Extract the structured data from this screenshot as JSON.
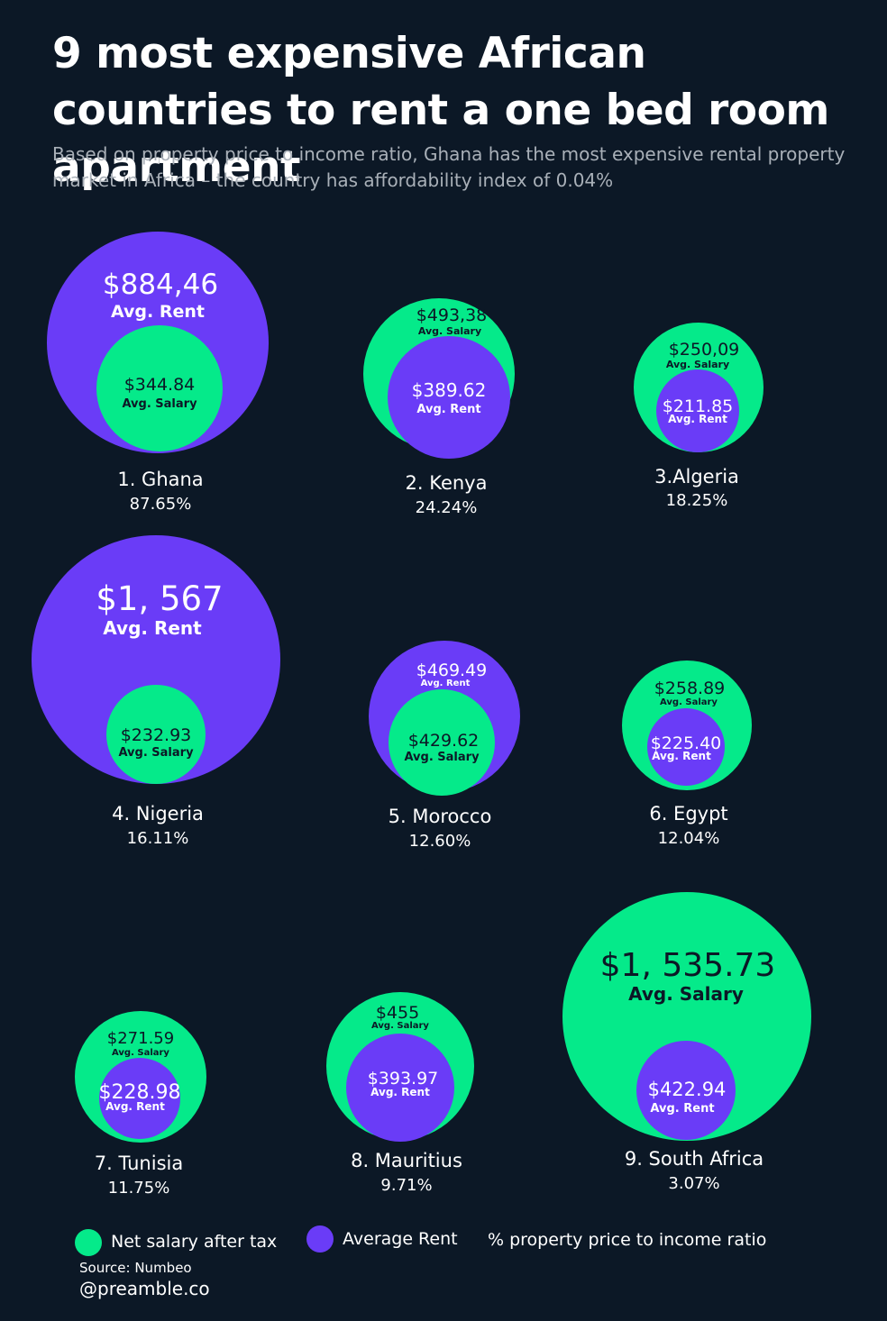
{
  "title": "9 most expensive African countries to rent a one bed room apartment",
  "subtitle": "Based on property price to income ratio, Ghana has the most expensive rental property market in Africa – the country has affordability index of 0.04%",
  "colors": {
    "salary": "#05ea8a",
    "rent": "#6a3cf7",
    "background": "#0c1826"
  },
  "chart_data": {
    "type": "nested-bubble",
    "series": [
      {
        "name": "Net salary after tax",
        "color": "#05ea8a"
      },
      {
        "name": "Average Rent",
        "color": "#6a3cf7"
      }
    ],
    "items": [
      {
        "rank_label": "1. Ghana",
        "percent": "87.65%",
        "ratio": 87.65,
        "outer": {
          "kind": "rent",
          "value": 884.46,
          "value_text": "$884,46",
          "label": "Avg. Rent"
        },
        "inner": {
          "kind": "salary",
          "value": 344.84,
          "value_text": "$344.84",
          "label": "Avg. Salary"
        }
      },
      {
        "rank_label": "2. Kenya",
        "percent": "24.24%",
        "ratio": 24.24,
        "outer": {
          "kind": "salary",
          "value": 493.38,
          "value_text": "$493,38",
          "label": "Avg. Salary"
        },
        "inner": {
          "kind": "rent",
          "value": 389.62,
          "value_text": "$389.62",
          "label": "Avg. Rent"
        }
      },
      {
        "rank_label": "3.Algeria",
        "percent": "18.25%",
        "ratio": 18.25,
        "outer": {
          "kind": "salary",
          "value": 250.09,
          "value_text": "$250,09",
          "label": "Avg. Salary"
        },
        "inner": {
          "kind": "rent",
          "value": 211.85,
          "value_text": "$211.85",
          "label": "Avg. Rent"
        }
      },
      {
        "rank_label": "4. Nigeria",
        "percent": "16.11%",
        "ratio": 16.11,
        "outer": {
          "kind": "rent",
          "value": 1567,
          "value_text": "$1, 567",
          "label": "Avg. Rent"
        },
        "inner": {
          "kind": "salary",
          "value": 232.93,
          "value_text": "$232.93",
          "label": "Avg. Salary"
        }
      },
      {
        "rank_label": "5. Morocco",
        "percent": "12.60%",
        "ratio": 12.6,
        "outer": {
          "kind": "rent",
          "value": 469.49,
          "value_text": "$469.49",
          "label": "Avg. Rent"
        },
        "inner": {
          "kind": "salary",
          "value": 429.62,
          "value_text": "$429.62",
          "label": "Avg. Salary"
        }
      },
      {
        "rank_label": "6. Egypt",
        "percent": "12.04%",
        "ratio": 12.04,
        "outer": {
          "kind": "salary",
          "value": 258.89,
          "value_text": "$258.89",
          "label": "Avg. Salary"
        },
        "inner": {
          "kind": "rent",
          "value": 225.4,
          "value_text": "$225.40",
          "label": "Avg. Rent"
        }
      },
      {
        "rank_label": "7. Tunisia",
        "percent": "11.75%",
        "ratio": 11.75,
        "outer": {
          "kind": "salary",
          "value": 271.59,
          "value_text": "$271.59",
          "label": "Avg. Salary"
        },
        "inner": {
          "kind": "rent",
          "value": 228.98,
          "value_text": "$228.98",
          "label": "Avg. Rent"
        }
      },
      {
        "rank_label": "8. Mauritius",
        "percent": "9.71%",
        "ratio": 9.71,
        "outer": {
          "kind": "salary",
          "value": 455,
          "value_text": "$455",
          "label": "Avg. Salary"
        },
        "inner": {
          "kind": "rent",
          "value": 393.97,
          "value_text": "$393.97",
          "label": "Avg. Rent"
        }
      },
      {
        "rank_label": "9. South Africa",
        "percent": "3.07%",
        "ratio": 3.07,
        "outer": {
          "kind": "salary",
          "value": 1535.73,
          "value_text": "$1, 535.73",
          "label": "Avg. Salary"
        },
        "inner": {
          "kind": "rent",
          "value": 422.94,
          "value_text": "$422.94",
          "label": "Avg. Rent"
        }
      }
    ]
  },
  "legend": {
    "salary": "Net salary after tax",
    "rent": "Average Rent",
    "ratio": "% property price to income ratio"
  },
  "source": "Source: Numbeo",
  "handle": "@preamble.co"
}
